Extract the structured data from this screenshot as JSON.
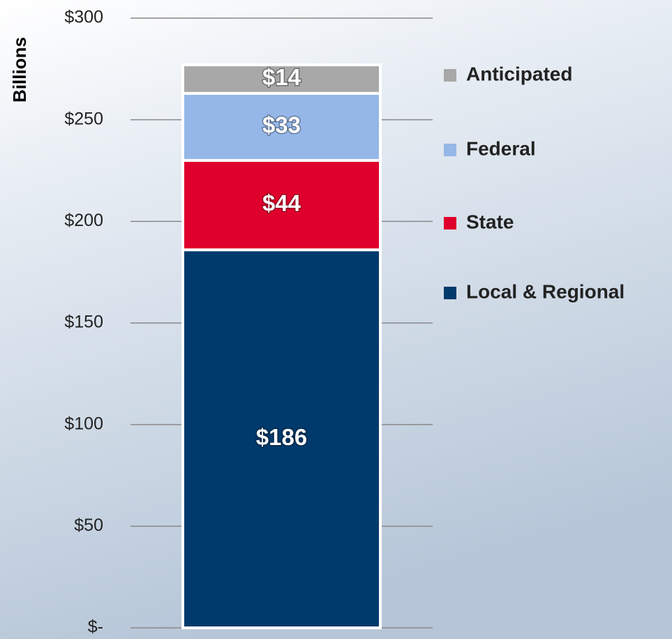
{
  "chart_data": {
    "type": "stacked-bar",
    "y_label": "Billions",
    "categories": [
      null
    ],
    "series": [
      {
        "name": "Local & Regional",
        "color": "#003a6c",
        "values": [
          186
        ],
        "value_labels": [
          "$186"
        ]
      },
      {
        "name": "State",
        "color": "#e0002d",
        "values": [
          44
        ],
        "value_labels": [
          "$44"
        ]
      },
      {
        "name": "Federal",
        "color": "#95b7e8",
        "values": [
          33
        ],
        "value_labels": [
          "$33"
        ]
      },
      {
        "name": "Anticipated",
        "color": "#a8a8a8",
        "values": [
          14
        ],
        "value_labels": [
          "$14"
        ]
      }
    ],
    "ylim": [
      0,
      300
    ],
    "yticks": [
      {
        "value": 0,
        "label": "$-"
      },
      {
        "value": 50,
        "label": "$50"
      },
      {
        "value": 100,
        "label": "$100"
      },
      {
        "value": 150,
        "label": "$150"
      },
      {
        "value": 200,
        "label": "$200"
      },
      {
        "value": 250,
        "label": "$250"
      },
      {
        "value": 300,
        "label": "$300"
      }
    ],
    "grid": true,
    "legend": "right"
  }
}
